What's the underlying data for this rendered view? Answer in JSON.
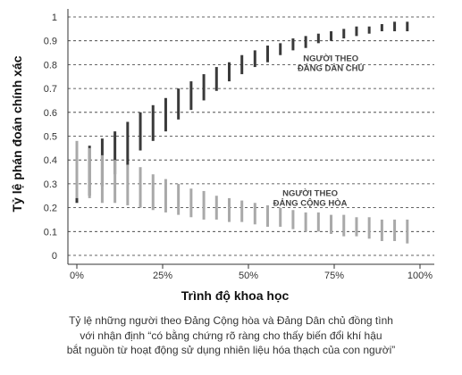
{
  "chart_data": {
    "type": "range-bar",
    "title": "",
    "xlabel": "Trình độ khoa học",
    "ylabel": "Tỷ lệ phán đoán chính xác",
    "xlim": [
      0,
      100
    ],
    "ylim": [
      0,
      1
    ],
    "x_ticks": [
      "0%",
      "25%",
      "50%",
      "75%",
      "100%"
    ],
    "y_ticks": [
      "0",
      "0.1",
      "0.2",
      "0.3",
      "0.4",
      "0.5",
      "0.6",
      "0.7",
      "0.8",
      "0.9",
      "1"
    ],
    "grid": "horizontal-dashed",
    "x": [
      0,
      3.7,
      7.4,
      11.1,
      14.8,
      18.5,
      22.2,
      25.9,
      29.6,
      33.3,
      37,
      40.7,
      44.4,
      48.1,
      51.9,
      55.6,
      59.3,
      63,
      66.7,
      70.4,
      74.1,
      77.8,
      81.5,
      85.2,
      88.9,
      92.6,
      96.3
    ],
    "series": [
      {
        "name": "NGƯỜI THEO ĐẢNG DÂN CHỦ",
        "color": "#3a3a3a",
        "low": [
          0.22,
          0.25,
          0.29,
          0.34,
          0.38,
          0.44,
          0.48,
          0.52,
          0.57,
          0.61,
          0.65,
          0.69,
          0.73,
          0.76,
          0.79,
          0.81,
          0.84,
          0.86,
          0.87,
          0.89,
          0.9,
          0.91,
          0.92,
          0.93,
          0.94,
          0.94,
          0.94
        ],
        "high": [
          0.42,
          0.46,
          0.49,
          0.52,
          0.56,
          0.6,
          0.63,
          0.66,
          0.7,
          0.73,
          0.76,
          0.79,
          0.81,
          0.84,
          0.86,
          0.88,
          0.89,
          0.91,
          0.92,
          0.93,
          0.94,
          0.95,
          0.96,
          0.96,
          0.97,
          0.98,
          0.98
        ]
      },
      {
        "name": "NGƯỜI THEO ĐẢNG CỘNG HÒA",
        "color": "#a9a9a9",
        "low": [
          0.24,
          0.24,
          0.22,
          0.22,
          0.21,
          0.2,
          0.19,
          0.18,
          0.17,
          0.16,
          0.15,
          0.15,
          0.14,
          0.14,
          0.13,
          0.12,
          0.12,
          0.11,
          0.1,
          0.1,
          0.09,
          0.08,
          0.08,
          0.07,
          0.06,
          0.06,
          0.05
        ],
        "high": [
          0.48,
          0.45,
          0.42,
          0.4,
          0.38,
          0.37,
          0.34,
          0.32,
          0.3,
          0.28,
          0.27,
          0.25,
          0.24,
          0.23,
          0.22,
          0.21,
          0.2,
          0.19,
          0.18,
          0.18,
          0.17,
          0.17,
          0.16,
          0.16,
          0.15,
          0.15,
          0.15
        ]
      }
    ],
    "annotations": [
      {
        "series": 0,
        "lines": [
          "NGƯỜI THEO",
          "ĐẢNG DÂN CHỦ"
        ],
        "at_x": 74,
        "at_y": 0.815
      },
      {
        "series": 1,
        "lines": [
          "NGƯỜI THEO",
          "ĐẢNG CỘNG HÒA"
        ],
        "at_x": 68,
        "at_y": 0.25
      }
    ]
  },
  "caption": {
    "lines": [
      "Tỷ lệ những người theo Đảng Cộng hòa và Đảng Dân chủ đồng tình",
      "với nhận định “có bằng chứng rõ ràng cho thấy biến đổi khí hậu",
      "bắt nguồn từ hoạt động sử dụng nhiên liệu hóa thạch của con người”"
    ]
  }
}
